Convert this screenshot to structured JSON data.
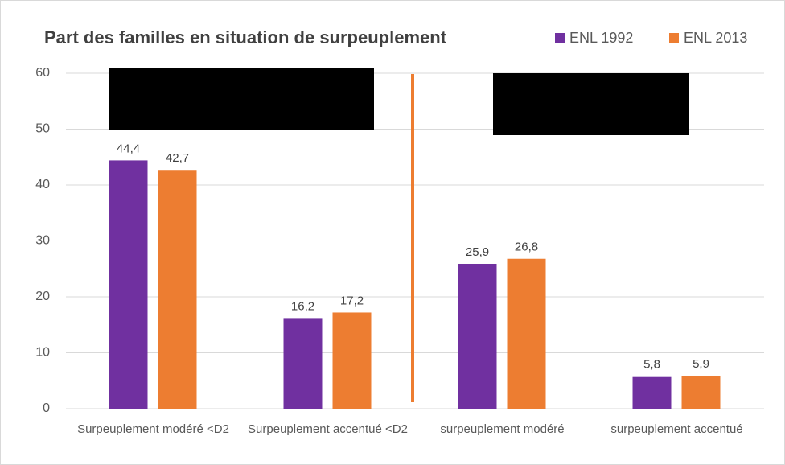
{
  "chart_data": {
    "type": "bar",
    "title": "Part des familles en situation de surpeuplement",
    "categories": [
      "Surpeuplement modéré <D2",
      "Surpeuplement accentué <D2",
      "surpeuplement modéré",
      "surpeuplement accentué"
    ],
    "series": [
      {
        "name": "ENL 1992",
        "color": "#7030a0",
        "values": [
          44.4,
          16.2,
          25.9,
          5.8
        ],
        "value_labels": [
          "44,4",
          "16,2",
          "25,9",
          "5,8"
        ]
      },
      {
        "name": "ENL 2013",
        "color": "#ed7d31",
        "values": [
          42.7,
          17.2,
          26.8,
          5.9
        ],
        "value_labels": [
          "42,7",
          "17,2",
          "26,8",
          "5,9"
        ]
      }
    ],
    "ylim": [
      0,
      60
    ],
    "yticks": [
      0,
      10,
      20,
      30,
      40,
      50,
      60
    ],
    "grid": true,
    "legend": "top-right"
  }
}
